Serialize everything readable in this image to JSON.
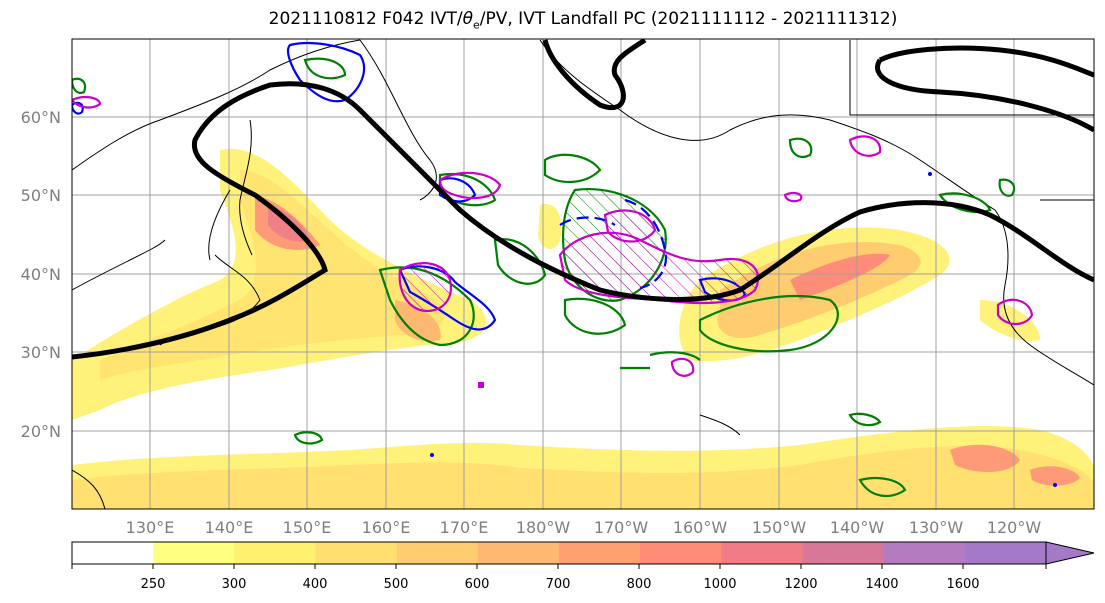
{
  "title_text": "2021110812 F042 IVT/θe/PV, IVT Landfall PC (2021111112 - 2021111312)",
  "title": {
    "pre": "2021110812 F042 IVT/",
    "theta": "θ",
    "sub": "e",
    "post": "/PV, IVT Landfall PC (2021111112 - 2021111312)"
  },
  "lat_labels": [
    "60°N",
    "50°N",
    "40°N",
    "30°N",
    "20°N"
  ],
  "lon_labels": [
    "130°E",
    "140°E",
    "150°E",
    "160°E",
    "170°E",
    "180°W",
    "170°W",
    "160°W",
    "150°W",
    "140°W",
    "130°W",
    "120°W"
  ],
  "colorbar": {
    "ticks": [
      "250",
      "300",
      "400",
      "500",
      "600",
      "700",
      "800",
      "1000",
      "1200",
      "1400",
      "1600"
    ],
    "colors": [
      "#ffffff",
      "#ffff80",
      "#fff070",
      "#ffdf70",
      "#ffcc70",
      "#ffb870",
      "#ffa070",
      "#ff8c78",
      "#f07c88",
      "#d87898",
      "#b47cc0",
      "#a47ac8"
    ]
  },
  "contour_colors": {
    "ivt_fill": "#ffd76e",
    "pc_line": "#000000",
    "pv": "#008000",
    "theta_e": "#0000ff",
    "landfall": "#cc00cc"
  }
}
